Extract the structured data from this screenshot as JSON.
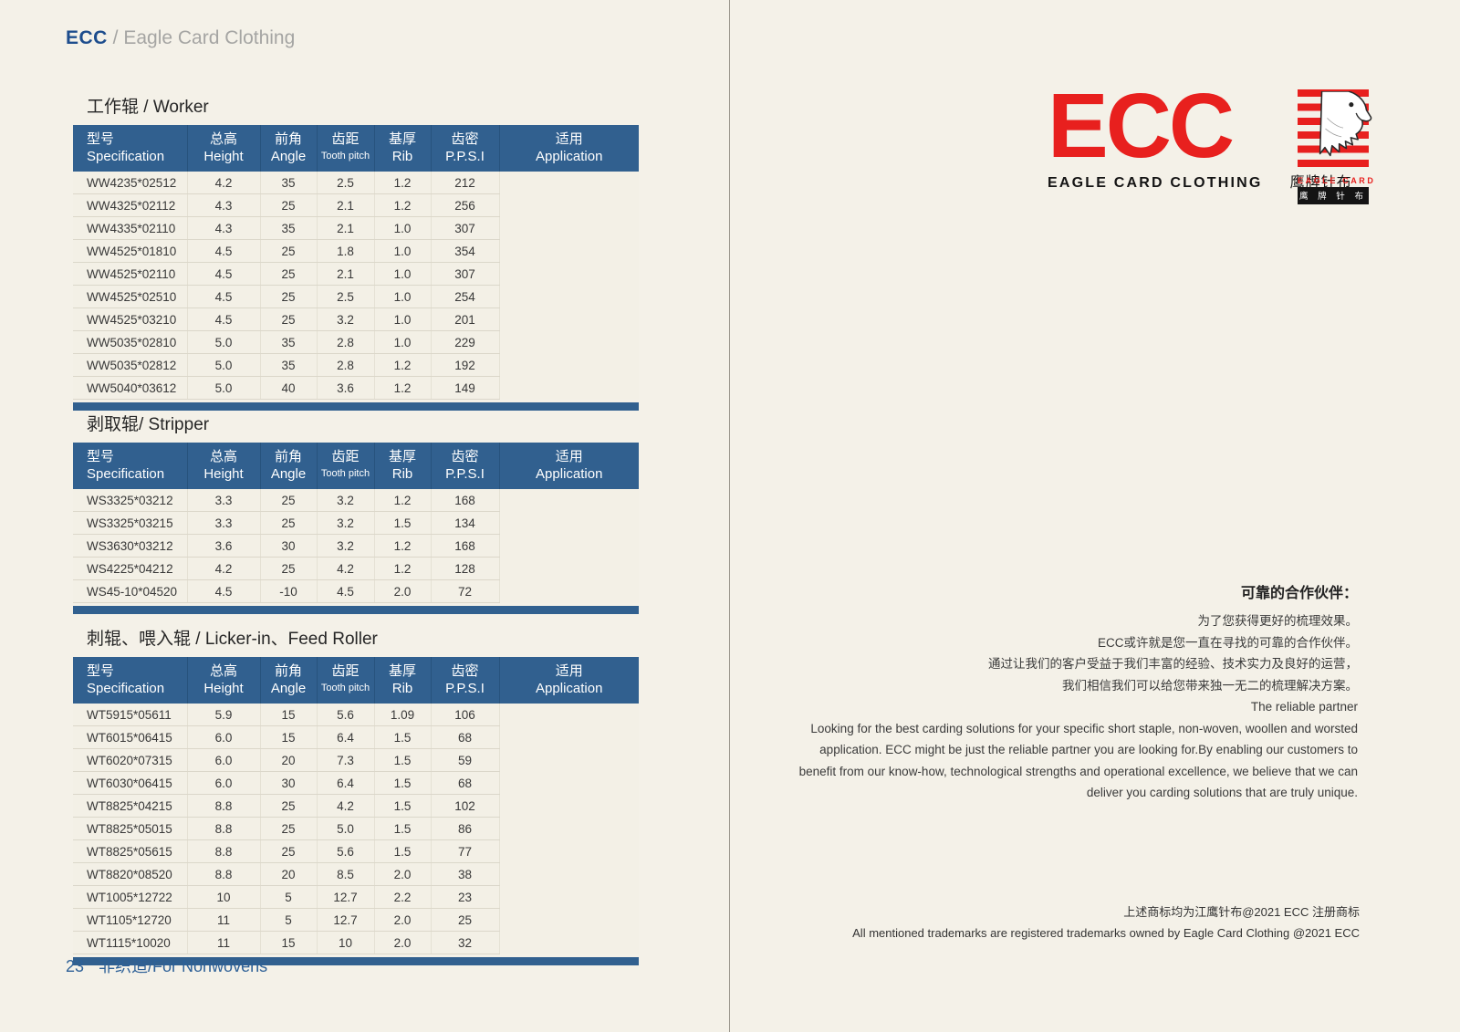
{
  "colors": {
    "page_bg": "#f4f1e8",
    "table_header_blue": "#31608f",
    "brand_red": "#e8201e",
    "footer_blue": "#2d6097",
    "breadcrumb_blue": "#1d4d8d"
  },
  "breadcrumb": {
    "brand": "ECC",
    "rest": " / Eagle Card Clothing"
  },
  "table_columns": [
    {
      "zh": "型号",
      "en": "Specification"
    },
    {
      "zh": "总高",
      "en": "Height"
    },
    {
      "zh": "前角",
      "en": "Angle"
    },
    {
      "zh": "齿距",
      "en": "Tooth pitch",
      "small_en": true
    },
    {
      "zh": "基厚",
      "en": "Rib"
    },
    {
      "zh": "齿密",
      "en": "P.P.S.I"
    },
    {
      "zh": "适用",
      "en": "Application"
    }
  ],
  "sections": [
    {
      "title": "工作辊 / Worker",
      "rows": [
        [
          "WW4235*02512",
          "4.2",
          "35",
          "2.5",
          "1.2",
          "212"
        ],
        [
          "WW4325*02112",
          "4.3",
          "25",
          "2.1",
          "1.2",
          "256"
        ],
        [
          "WW4335*02110",
          "4.3",
          "35",
          "2.1",
          "1.0",
          "307"
        ],
        [
          "WW4525*01810",
          "4.5",
          "25",
          "1.8",
          "1.0",
          "354"
        ],
        [
          "WW4525*02110",
          "4.5",
          "25",
          "2.1",
          "1.0",
          "307"
        ],
        [
          "WW4525*02510",
          "4.5",
          "25",
          "2.5",
          "1.0",
          "254"
        ],
        [
          "WW4525*03210",
          "4.5",
          "25",
          "3.2",
          "1.0",
          "201"
        ],
        [
          "WW5035*02810",
          "5.0",
          "35",
          "2.8",
          "1.0",
          "229"
        ],
        [
          "WW5035*02812",
          "5.0",
          "35",
          "2.8",
          "1.2",
          "192"
        ],
        [
          "WW5040*03612",
          "5.0",
          "40",
          "3.6",
          "1.2",
          "149"
        ]
      ]
    },
    {
      "title": "剥取辊/ Stripper",
      "rows": [
        [
          "WS3325*03212",
          "3.3",
          "25",
          "3.2",
          "1.2",
          "168"
        ],
        [
          "WS3325*03215",
          "3.3",
          "25",
          "3.2",
          "1.5",
          "134"
        ],
        [
          "WS3630*03212",
          "3.6",
          "30",
          "3.2",
          "1.2",
          "168"
        ],
        [
          "WS4225*04212",
          "4.2",
          "25",
          "4.2",
          "1.2",
          "128"
        ],
        [
          "WS45-10*04520",
          "4.5",
          "-10",
          "4.5",
          "2.0",
          "72"
        ]
      ]
    },
    {
      "title": "刺辊、喂入辊 / Licker-in、Feed Roller",
      "rows": [
        [
          "WT5915*05611",
          "5.9",
          "15",
          "5.6",
          "1.09",
          "106"
        ],
        [
          "WT6015*06415",
          "6.0",
          "15",
          "6.4",
          "1.5",
          "68"
        ],
        [
          "WT6020*07315",
          "6.0",
          "20",
          "7.3",
          "1.5",
          "59"
        ],
        [
          "WT6030*06415",
          "6.0",
          "30",
          "6.4",
          "1.5",
          "68"
        ],
        [
          "WT8825*04215",
          "8.8",
          "25",
          "4.2",
          "1.5",
          "102"
        ],
        [
          "WT8825*05015",
          "8.8",
          "25",
          "5.0",
          "1.5",
          "86"
        ],
        [
          "WT8825*05615",
          "8.8",
          "25",
          "5.6",
          "1.5",
          "77"
        ],
        [
          "WT8820*08520",
          "8.8",
          "20",
          "8.5",
          "2.0",
          "38"
        ],
        [
          "WT1005*12722",
          "10",
          "5",
          "12.7",
          "2.2",
          "23"
        ],
        [
          "WT1105*12720",
          "11",
          "5",
          "12.7",
          "2.0",
          "25"
        ],
        [
          "WT1115*10020",
          "11",
          "15",
          "10",
          "2.0",
          "32"
        ]
      ]
    }
  ],
  "page_footer": {
    "page_number": "23",
    "label": "非织造/For Nonwovens"
  },
  "logo": {
    "brand": "ECC",
    "subtitle_en": "EAGLE CARD CLOTHING",
    "subtitle_zh": "鹰牌针布",
    "emblem_title": "EAGLE CARD",
    "emblem_subtitle": "鹰 牌 针 布",
    "eagle_icon": "eagle-head-icon"
  },
  "partner_text": {
    "zh_title": "可靠的合作伙伴：",
    "zh_lines": [
      "为了您获得更好的梳理效果。",
      "ECC或许就是您一直在寻找的可靠的合作伙伴。",
      "通过让我们的客户受益于我们丰富的经验、技术实力及良好的运营，",
      "我们相信我们可以给您带来独一无二的梳理解决方案。"
    ],
    "en_title": "The reliable partner",
    "en_lines": [
      "Looking for the best carding solutions for your specific short staple, non-woven, woollen and worsted",
      "application. ECC might be just the reliable partner you are looking for.By enabling our customers to",
      "benefit from our know-how, technological strengths and operational excellence, we believe that we can",
      "deliver you carding solutions that are truly unique."
    ]
  },
  "trademark": {
    "zh": "上述商标均为江鹰针布@2021 ECC  注册商标",
    "en": "All mentioned trademarks are registered trademarks owned by  Eagle Card Clothing @2021 ECC"
  }
}
